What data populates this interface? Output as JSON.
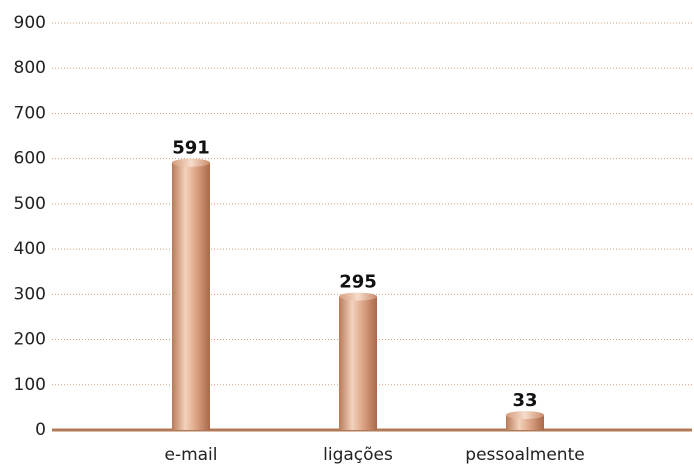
{
  "chart_data": {
    "type": "bar",
    "categories": [
      "e-mail",
      "ligações",
      "pessoalmente"
    ],
    "values": [
      591,
      295,
      33
    ],
    "color": "#d9a07e",
    "ylim": [
      0,
      900
    ],
    "yticks": [
      0,
      100,
      200,
      300,
      400,
      500,
      600,
      700,
      800,
      900
    ],
    "grid": true
  }
}
